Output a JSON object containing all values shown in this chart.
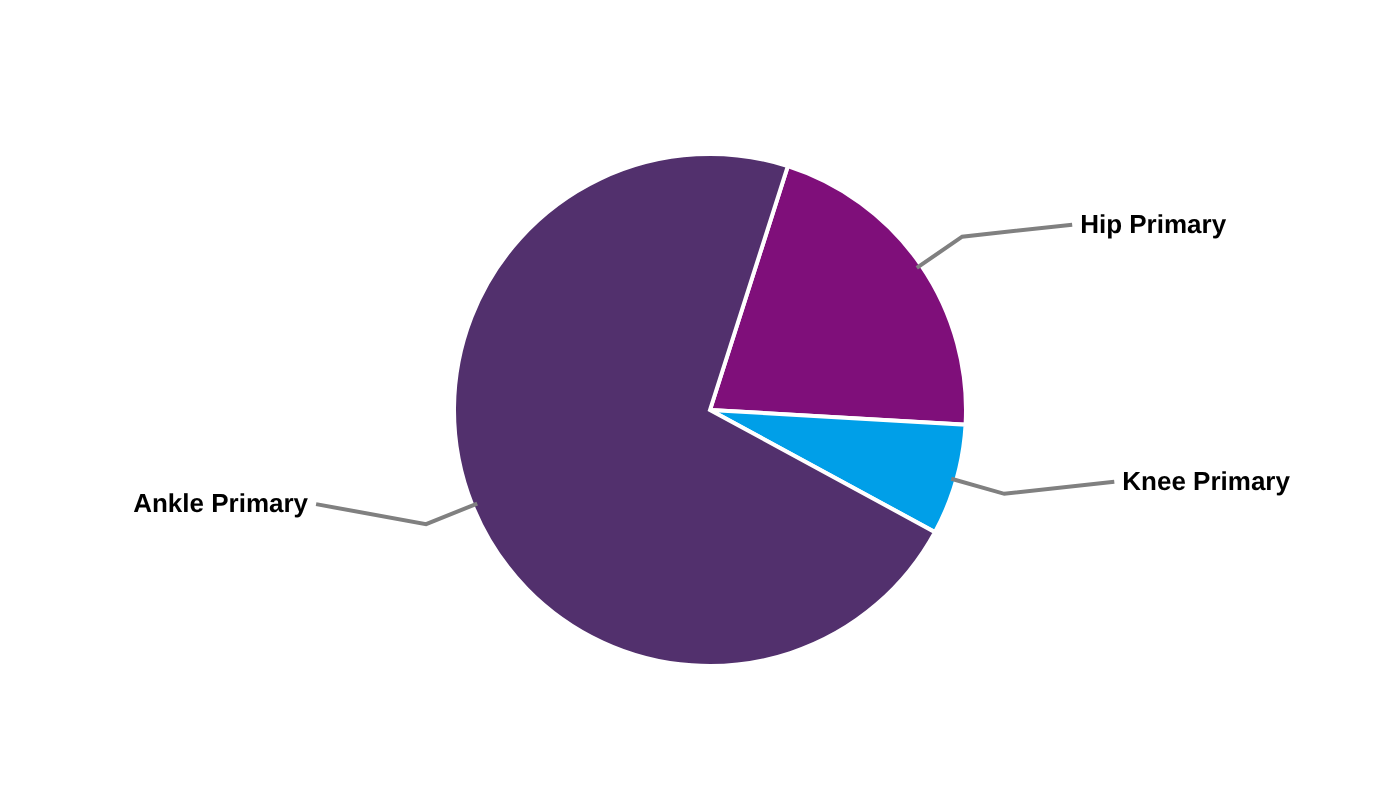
{
  "chart_data": {
    "type": "pie",
    "categories": [
      "Hip Primary",
      "Knee Primary",
      "Ankle Primary"
    ],
    "values": [
      21,
      7,
      72
    ],
    "colors": [
      "#7f0f7a",
      "#009fe8",
      "#52306d"
    ]
  }
}
